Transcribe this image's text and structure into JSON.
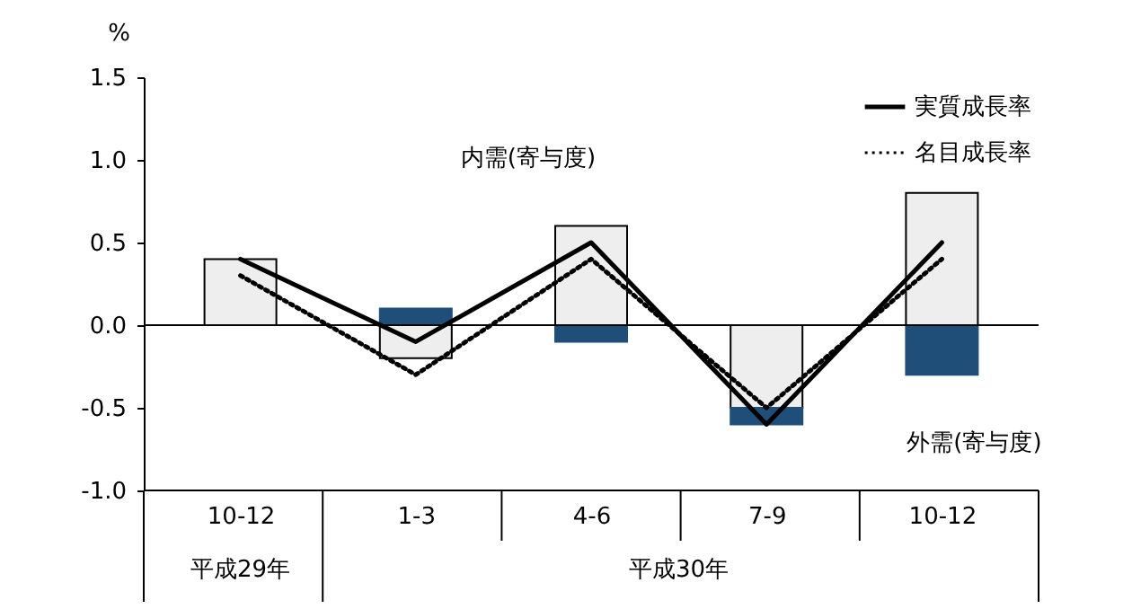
{
  "chart_data": {
    "type": "bar",
    "ylabel": "%",
    "categories": [
      "10-12",
      "1-3",
      "4-6",
      "7-9",
      "10-12"
    ],
    "stacked": true,
    "ylim": [
      -1,
      1.5
    ],
    "yticks": [
      {
        "value": -1,
        "label": "-1.0"
      },
      {
        "value": -0.5,
        "label": "-0.5"
      },
      {
        "value": 0,
        "label": "0.0"
      },
      {
        "value": 0.5,
        "label": "0.5"
      },
      {
        "value": 1,
        "label": "1.0"
      },
      {
        "value": 1.5,
        "label": "1.5"
      }
    ],
    "grid": false,
    "legend": "top right",
    "ref_lines": [
      {
        "axis": "y",
        "value": 0,
        "color": "#000000"
      }
    ],
    "annotations": [
      "平成29年",
      "平成30年"
    ],
    "series": [
      {
        "name": "内需(寄与度)",
        "color": "#eeeeee",
        "values": [
          0.4,
          -0.2,
          0.6,
          -0.5,
          0.8
        ]
      },
      {
        "name": "外需(寄与度)",
        "color": "#1f4e79",
        "values": [
          0,
          0.1,
          -0.1,
          -0.1,
          -0.3
        ]
      },
      {
        "name": "実質成長率",
        "type": "line",
        "color": "#000000",
        "line_style": "solid",
        "values": [
          0.4,
          -0.1,
          0.5,
          -0.6,
          0.5
        ]
      },
      {
        "name": "名目成長率",
        "type": "line",
        "color": "#000000",
        "line_style": "dotted",
        "values": [
          0.3,
          -0.3,
          0.4,
          -0.5,
          0.4
        ]
      }
    ]
  }
}
